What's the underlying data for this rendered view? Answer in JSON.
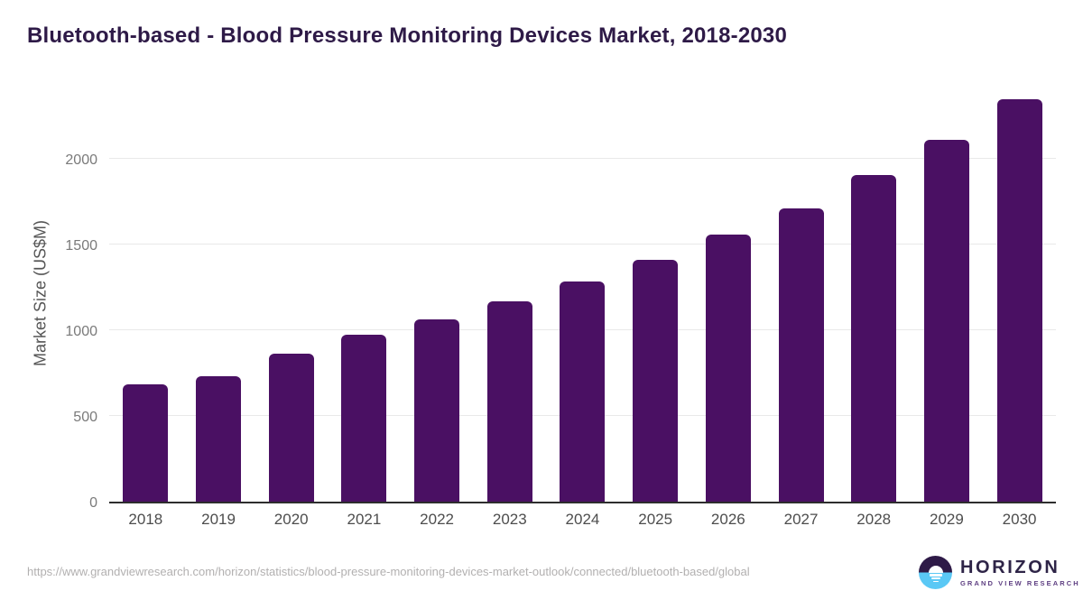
{
  "title": "Bluetooth-based - Blood Pressure Monitoring Devices Market, 2018-2030",
  "chart_data": {
    "type": "bar",
    "title": "Bluetooth-based - Blood Pressure Monitoring Devices Market, 2018-2030",
    "categories": [
      "2018",
      "2019",
      "2020",
      "2021",
      "2022",
      "2023",
      "2024",
      "2025",
      "2026",
      "2027",
      "2028",
      "2029",
      "2030"
    ],
    "values": [
      685,
      735,
      865,
      975,
      1065,
      1170,
      1285,
      1410,
      1560,
      1715,
      1910,
      2115,
      2350
    ],
    "xlabel": "",
    "ylabel": "Market Size (US$M)",
    "yticks": [
      0,
      500,
      1000,
      1500,
      2000
    ],
    "ylim": [
      0,
      2450
    ],
    "grid": "horizontal",
    "legend": "none",
    "bar_color": "#4a1063"
  },
  "colors": {
    "title_text": "#2e1a47",
    "bar": "#4a1063",
    "gridline": "#e9e9e9",
    "axis_line": "#2e2e2e",
    "y_tick_text": "#7a7a7a",
    "x_tick_text": "#4d4d4d",
    "url_text": "#b2b0b0",
    "logo_purple": "#2e2447",
    "logo_blue": "#5ac8f5"
  },
  "footer": {
    "source_url": "https://www.grandviewresearch.com/horizon/statistics/blood-pressure-monitoring-devices-market-outlook/connected/bluetooth-based/global",
    "logo_name": "HORIZON",
    "logo_subtext": "GRAND VIEW RESEARCH"
  }
}
